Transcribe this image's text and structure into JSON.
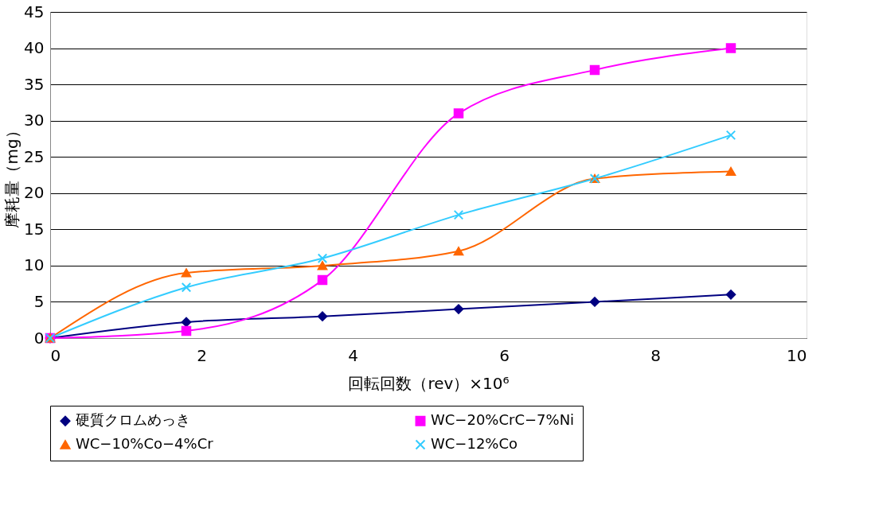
{
  "chart_data": {
    "type": "line",
    "xlabel": "回転回数（rev）×10⁶",
    "ylabel": "摩耗量（mg）",
    "x": [
      0,
      1.8,
      3.6,
      5.4,
      7.2,
      9.0
    ],
    "xlim": [
      0,
      10
    ],
    "xticks": [
      0,
      2,
      4,
      6,
      8,
      10
    ],
    "ylim": [
      0,
      45
    ],
    "yticks": [
      0,
      5,
      10,
      15,
      20,
      25,
      30,
      35,
      40,
      45
    ],
    "grid": "y",
    "legend": "bottom",
    "series": [
      {
        "name": "硬質クロムめっき",
        "color": "#000080",
        "marker": "diamond",
        "values": [
          0,
          2.2,
          3,
          4,
          5,
          6
        ]
      },
      {
        "name": "WC−20%CrC−7%Ni",
        "color": "#ff00ff",
        "marker": "square",
        "values": [
          0,
          1,
          8,
          31,
          37,
          40
        ]
      },
      {
        "name": "WC−10%Co−4%Cr",
        "color": "#ff6600",
        "marker": "triangle",
        "values": [
          0,
          9,
          10,
          12,
          22,
          23
        ]
      },
      {
        "name": "WC−12%Co",
        "color": "#33ccff",
        "marker": "cross",
        "values": [
          0,
          7,
          11,
          17,
          22,
          28
        ]
      }
    ]
  }
}
